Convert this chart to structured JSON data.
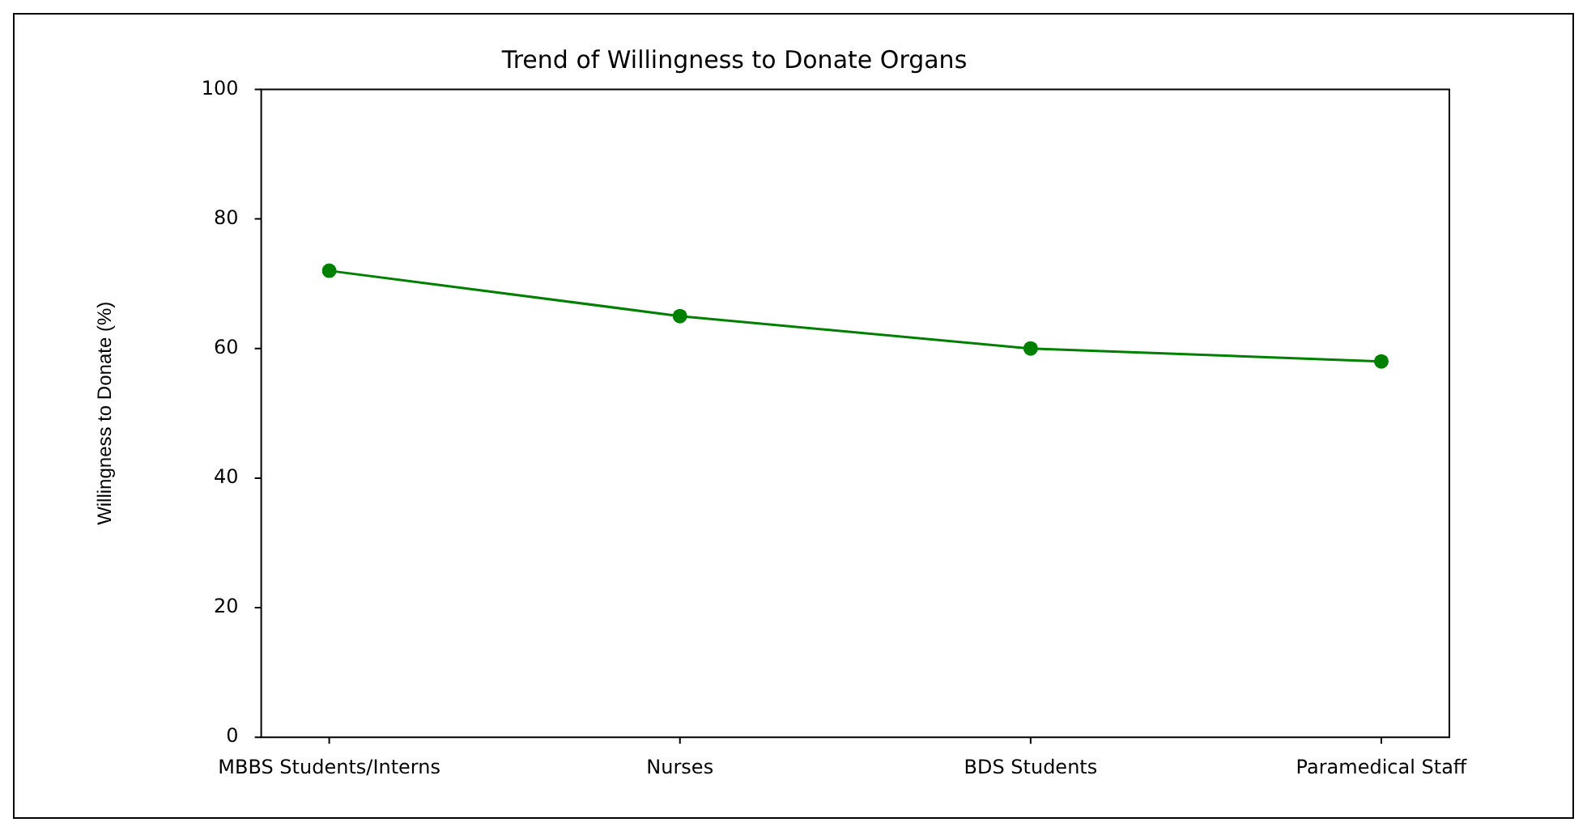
{
  "chart_data": {
    "type": "line",
    "title": "Trend of Willingness to Donate Organs",
    "ylabel": "Willingness to Donate (%)",
    "categories": [
      "MBBS Students/Interns",
      "Nurses",
      "BDS Students",
      "Paramedical Staff"
    ],
    "series": [
      {
        "color": "#008000",
        "values": [
          72,
          65,
          60,
          58
        ]
      }
    ],
    "ylim": [
      0,
      100
    ],
    "yticks": [
      0,
      20,
      40,
      60,
      80,
      100
    ],
    "marker": "circle",
    "line_style": "solid",
    "grid": false,
    "legend": false
  }
}
